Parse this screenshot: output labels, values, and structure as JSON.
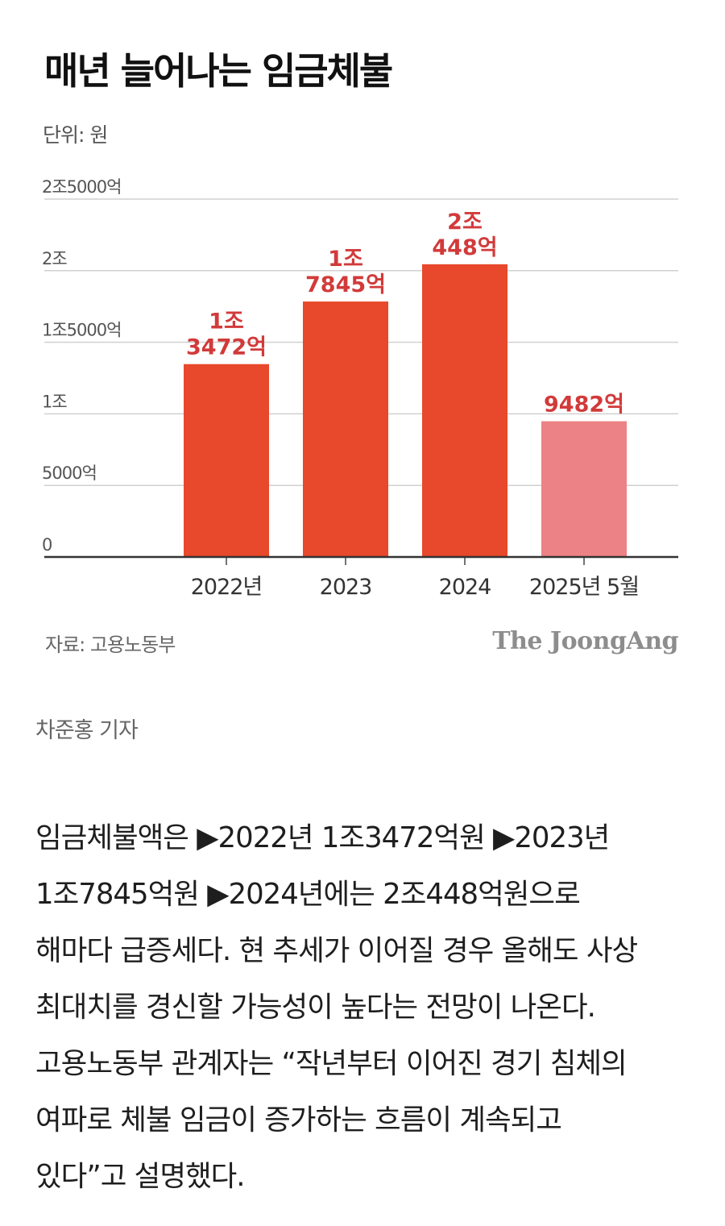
{
  "chart_data": {
    "type": "bar",
    "title": "매년 늘어나는 임금체불",
    "unit": "단위: 원",
    "categories": [
      "2022년",
      "2023",
      "2024",
      "2025년 5월"
    ],
    "values": [
      13472,
      17845,
      20448,
      9482
    ],
    "value_unit": "억원",
    "data_labels": [
      [
        "1조",
        "3472억"
      ],
      [
        "1조",
        "7845억"
      ],
      [
        "2조",
        "448억"
      ],
      [
        "9482억"
      ]
    ],
    "yticks": [
      0,
      5000,
      10000,
      15000,
      20000,
      25000
    ],
    "ytick_labels": [
      "0",
      "5000억",
      "1조",
      "1조5000억",
      "2조",
      "2조5000억"
    ],
    "ylim": [
      0,
      25000
    ],
    "bar_colors": [
      "#e8482b",
      "#e8482b",
      "#e8482b",
      "#ec8285"
    ],
    "label_color": "#d23a3a",
    "grid": true
  },
  "source": "자료: 고용노동부",
  "brand": "The JoongAng",
  "byline": "차준홍 기자",
  "article": {
    "lines": [
      "임금체불액은 ▶2022년 1조3472억원 ▶2023년",
      "1조7845억원 ▶2024년에는 2조448억원으로",
      "해마다 급증세다. 현 추세가 이어질 경우 올해도 사상",
      "최대치를 경신할 가능성이 높다는 전망이 나온다.",
      "고용노동부 관계자는 “작년부터 이어진 경기 침체의",
      "여파로 체불 임금이 증가하는 흐름이 계속되고",
      "있다”고 설명했다."
    ]
  }
}
